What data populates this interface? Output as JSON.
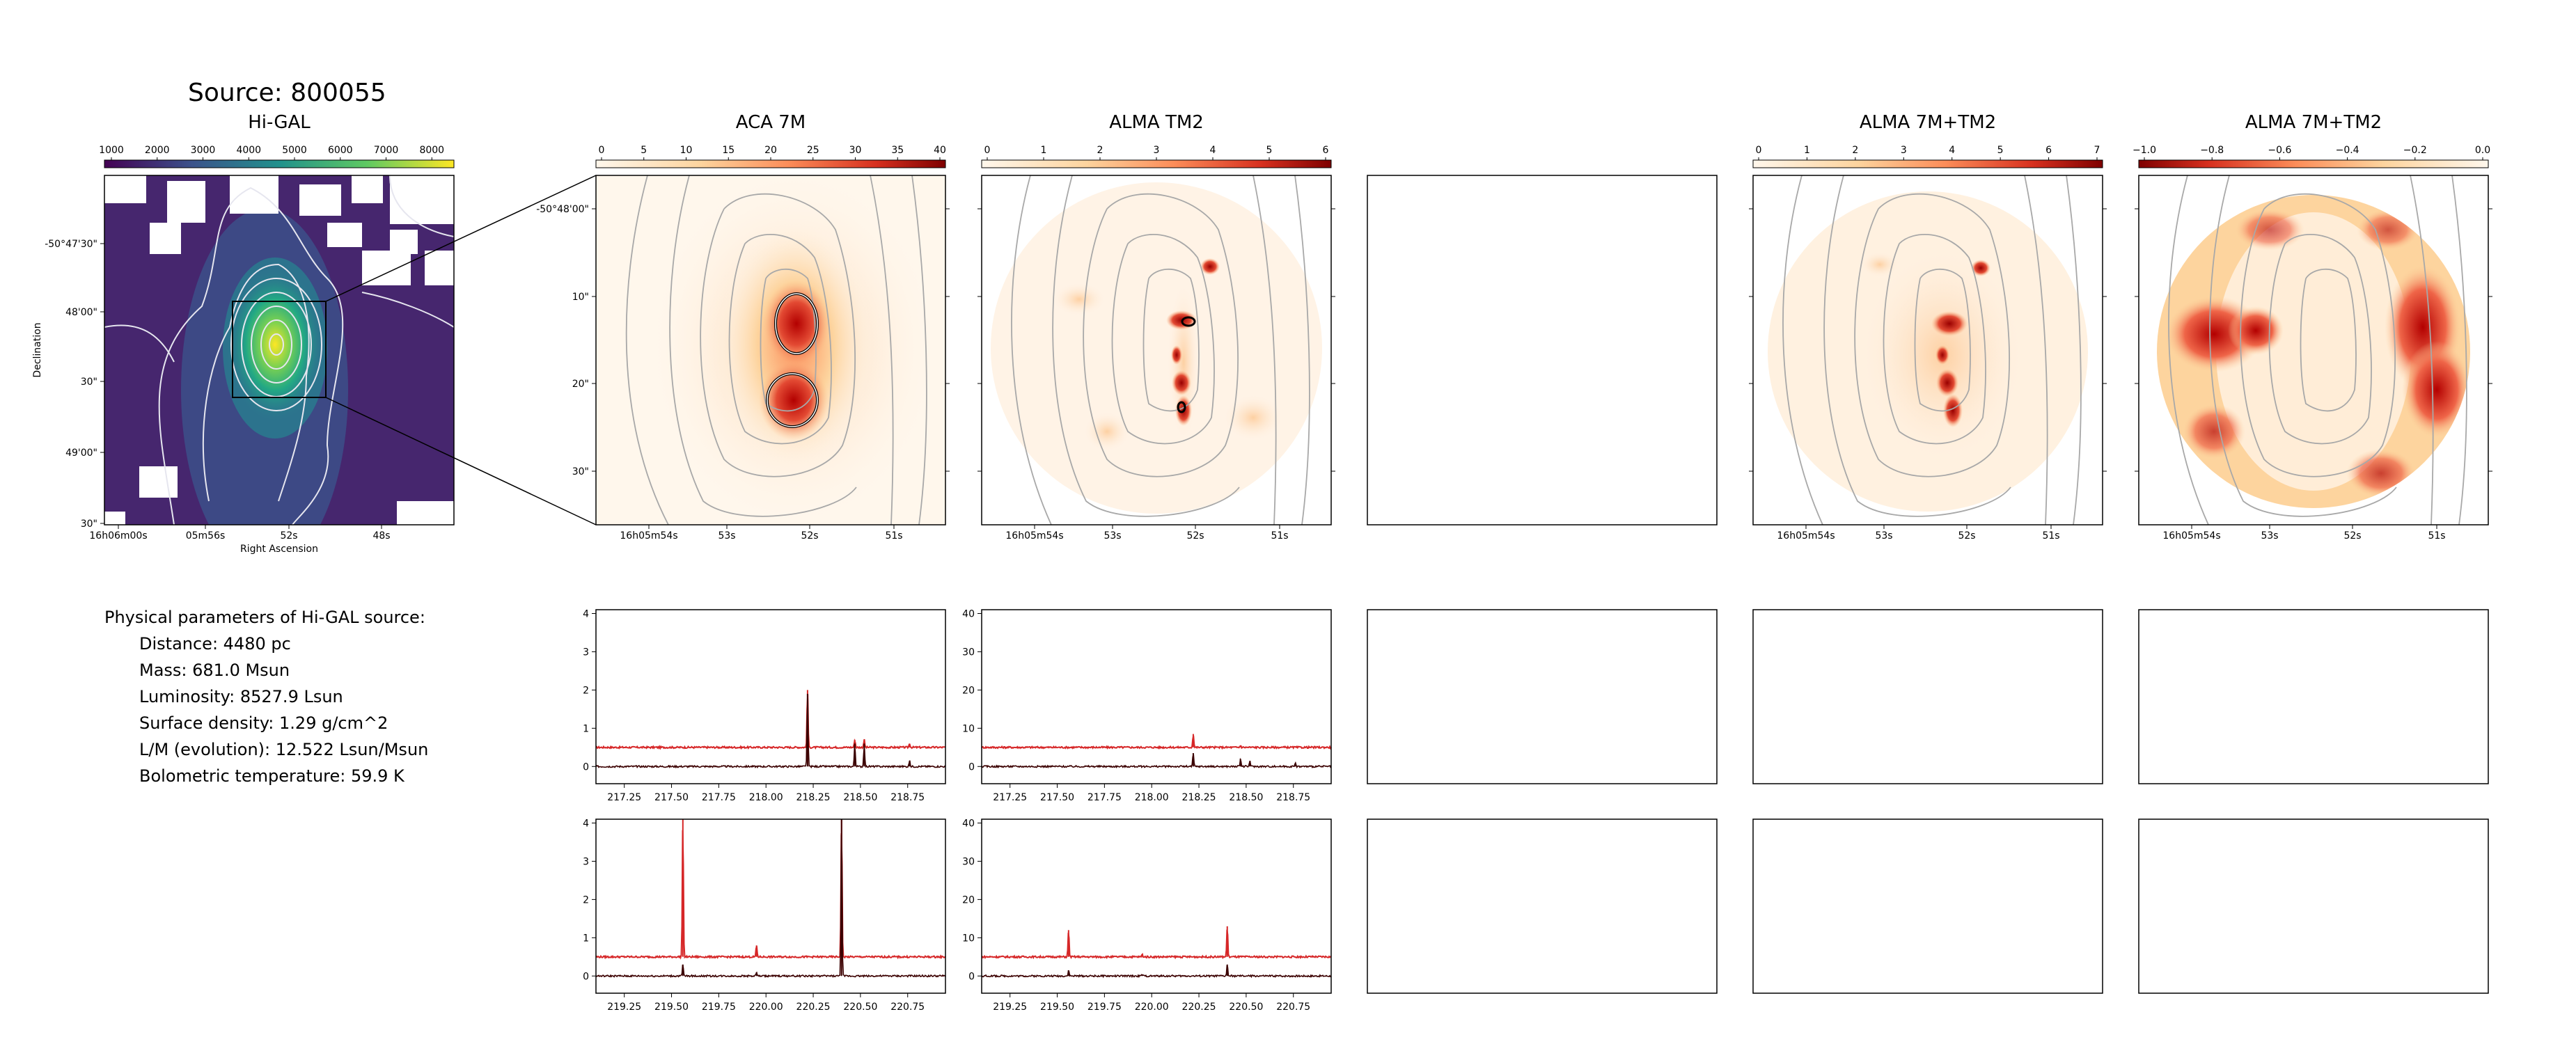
{
  "source_title": "Source: 800055",
  "panel_titles": [
    "Hi-GAL",
    "ACA 7M",
    "ALMA TM2",
    "ALMA 7M+TM2",
    "ALMA 7M+TM2"
  ],
  "colorbars": [
    {
      "ticks": [
        "1000",
        "2000",
        "3000",
        "4000",
        "5000",
        "6000",
        "7000",
        "8000"
      ],
      "cmap": "viridis"
    },
    {
      "ticks": [
        "0",
        "5",
        "10",
        "15",
        "20",
        "25",
        "30",
        "35",
        "40"
      ],
      "cmap": "orrd"
    },
    {
      "ticks": [
        "0",
        "1",
        "2",
        "3",
        "4",
        "5",
        "6"
      ],
      "cmap": "orrd"
    },
    {
      "ticks": [
        "0",
        "1",
        "2",
        "3",
        "4",
        "5",
        "6",
        "7"
      ],
      "cmap": "orrd"
    },
    {
      "ticks": [
        "−1.0",
        "−0.8",
        "−0.6",
        "−0.4",
        "−0.2",
        "0.0"
      ],
      "cmap": "orrd_r"
    }
  ],
  "higal_axes": {
    "xticks": [
      "16h06m00s",
      "05m56s",
      "52s",
      "48s"
    ],
    "yticks": [
      "-50°47'30\"",
      "48'00\"",
      "30\"",
      "49'00\"",
      "30\""
    ],
    "xlabel": "Right Ascension",
    "ylabel": "Declination"
  },
  "map_axes": {
    "xticks": [
      "16h05m54s",
      "53s",
      "52s",
      "51s"
    ],
    "yticks": [
      "-50°48'00\"",
      "10\"",
      "20\"",
      "30\""
    ]
  },
  "physical_params": {
    "heading": "Physical parameters of Hi-GAL source:",
    "lines": [
      "Distance: 4480 pc",
      "Mass: 681.0 Msun",
      "Luminosity: 8527.9 Lsun",
      "Surface density: 1.29 g/cm^2",
      "L/M (evolution): 12.522 Lsun/Msun",
      "Bolometric temperature: 59.9 K"
    ]
  },
  "chart_data": [
    {
      "type": "line",
      "panel": "spectrum-aca-row1",
      "xlim": [
        217.1,
        218.95
      ],
      "ylim": [
        -0.45,
        4.1
      ],
      "xticks": [
        "217.25",
        "217.50",
        "217.75",
        "218.00",
        "218.25",
        "218.50",
        "218.75"
      ],
      "yticks": [
        "0",
        "1",
        "2",
        "3",
        "4"
      ],
      "series": [
        {
          "baseline": 0.5,
          "peaks": [
            [
              218.22,
              1.5
            ],
            [
              218.47,
              0.2
            ],
            [
              218.52,
              0.2
            ],
            [
              218.76,
              0.1
            ]
          ]
        },
        {
          "baseline": 0.0,
          "peaks": [
            [
              218.22,
              1.9
            ],
            [
              218.47,
              0.6
            ],
            [
              218.52,
              0.6
            ],
            [
              218.76,
              0.15
            ]
          ]
        }
      ]
    },
    {
      "type": "line",
      "panel": "spectrum-tm2-row1",
      "xlim": [
        217.1,
        218.95
      ],
      "ylim": [
        -4.5,
        41
      ],
      "xticks": [
        "217.25",
        "217.50",
        "217.75",
        "218.00",
        "218.25",
        "218.50",
        "218.75"
      ],
      "yticks": [
        "0",
        "10",
        "20",
        "30",
        "40"
      ],
      "series": [
        {
          "baseline": 5,
          "peaks": [
            [
              218.22,
              3.5
            ],
            [
              218.47,
              0.5
            ]
          ]
        },
        {
          "baseline": 0,
          "peaks": [
            [
              218.22,
              3.5
            ],
            [
              218.47,
              2.0
            ],
            [
              218.52,
              1.5
            ],
            [
              218.76,
              0.8
            ]
          ]
        }
      ]
    },
    {
      "type": "line",
      "panel": "spectrum-aca-row2",
      "xlim": [
        219.1,
        220.95
      ],
      "ylim": [
        -0.45,
        4.1
      ],
      "xticks": [
        "219.25",
        "219.50",
        "219.75",
        "220.00",
        "220.25",
        "220.50",
        "220.75"
      ],
      "yticks": [
        "0",
        "1",
        "2",
        "3",
        "4"
      ],
      "series": [
        {
          "baseline": 0.5,
          "peaks": [
            [
              219.56,
              3.6
            ],
            [
              219.95,
              0.3
            ],
            [
              220.4,
              3.6
            ]
          ]
        },
        {
          "baseline": 0.0,
          "peaks": [
            [
              219.56,
              0.3
            ],
            [
              219.95,
              0.1
            ],
            [
              220.4,
              4.1
            ]
          ]
        }
      ]
    },
    {
      "type": "line",
      "panel": "spectrum-tm2-row2",
      "xlim": [
        219.1,
        220.95
      ],
      "ylim": [
        -4.5,
        41
      ],
      "xticks": [
        "219.25",
        "219.50",
        "219.75",
        "220.00",
        "220.25",
        "220.50",
        "220.75"
      ],
      "yticks": [
        "0",
        "10",
        "20",
        "30",
        "40"
      ],
      "series": [
        {
          "baseline": 5,
          "peaks": [
            [
              219.56,
              7
            ],
            [
              219.95,
              0.6
            ],
            [
              220.4,
              8
            ]
          ]
        },
        {
          "baseline": 0,
          "peaks": [
            [
              219.56,
              1.5
            ],
            [
              219.95,
              0.4
            ],
            [
              220.4,
              3
            ]
          ]
        }
      ]
    }
  ]
}
